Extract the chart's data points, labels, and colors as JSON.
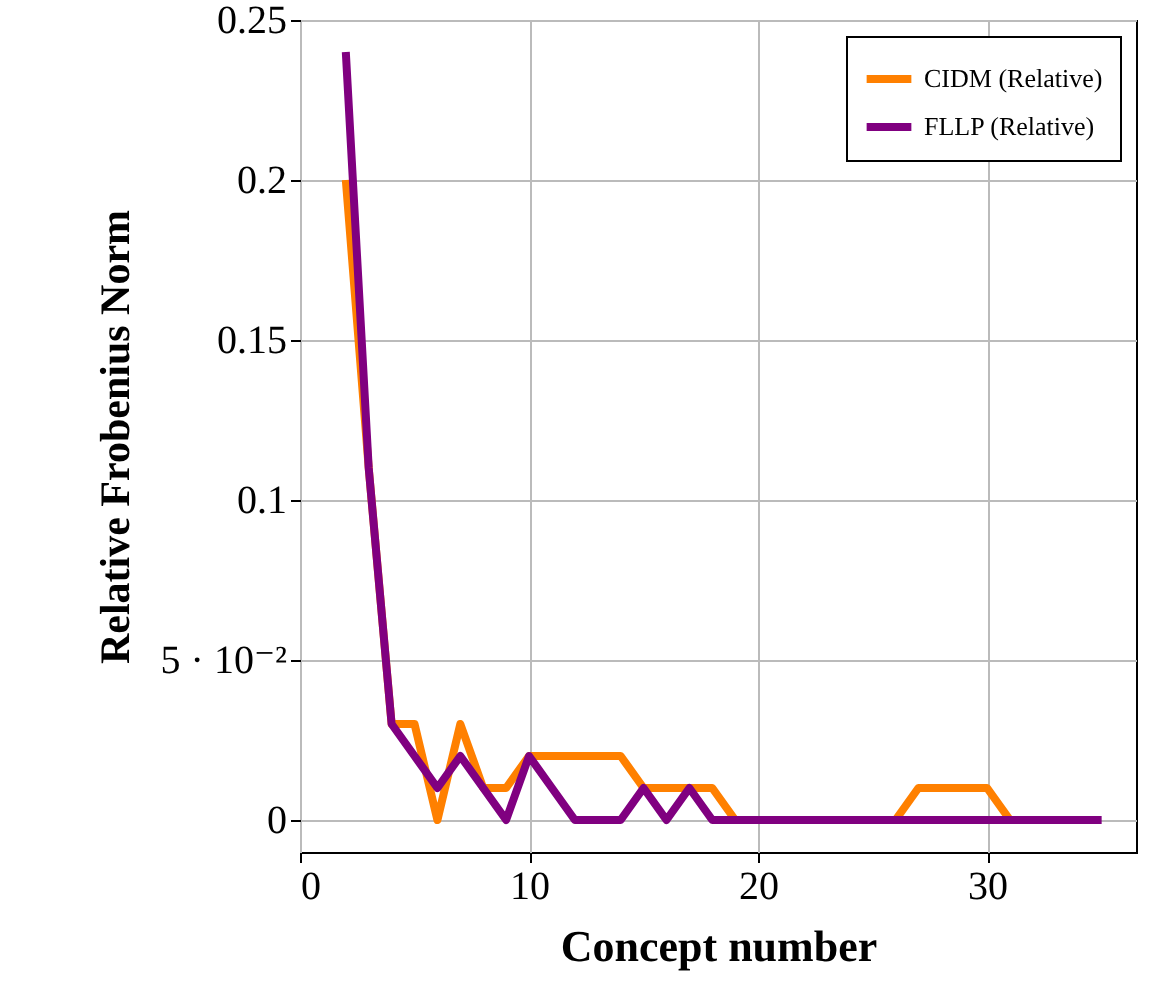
{
  "chart_data": {
    "type": "line",
    "xlabel": "Concept number",
    "ylabel": "Relative Frobenius Norm",
    "x": [
      2,
      3,
      4,
      5,
      6,
      7,
      8,
      9,
      10,
      11,
      12,
      13,
      14,
      15,
      16,
      17,
      18,
      19,
      20,
      21,
      22,
      23,
      24,
      25,
      26,
      27,
      28,
      29,
      30,
      31,
      32,
      33,
      34,
      35
    ],
    "series": [
      {
        "name": "CIDM (Relative)",
        "color": "#ff8000",
        "values": [
          0.2,
          0.11,
          0.03,
          0.03,
          0,
          0.03,
          0.01,
          0.01,
          0.02,
          0.02,
          0.02,
          0.02,
          0.02,
          0.01,
          0.01,
          0.01,
          0.01,
          0,
          0,
          0,
          0,
          0,
          0,
          0,
          0,
          0.01,
          0.01,
          0.01,
          0.01,
          0,
          0,
          null,
          null,
          null
        ]
      },
      {
        "name": "FLLP (Relative)",
        "color": "#800080",
        "values": [
          0.24,
          0.11,
          0.03,
          0.02,
          0.01,
          0.02,
          0.01,
          0,
          0.02,
          0.01,
          0,
          0,
          0,
          0.01,
          0,
          0.01,
          0,
          0,
          0,
          0,
          0,
          0,
          0,
          0,
          0,
          0,
          0,
          0,
          0,
          0,
          0,
          0,
          0,
          0
        ]
      }
    ],
    "xlim": [
      0,
      36.5
    ],
    "xticks": [
      0,
      10,
      20,
      30
    ],
    "ylim": [
      -0.01,
      0.25
    ],
    "yticks": [
      0,
      {
        "value": 0.05,
        "label": "5 · 10⁻²"
      },
      0.1,
      0.15,
      0.2,
      0.25
    ],
    "grid": true,
    "legend": "top right",
    "line_style": "solid",
    "marker": "none"
  }
}
